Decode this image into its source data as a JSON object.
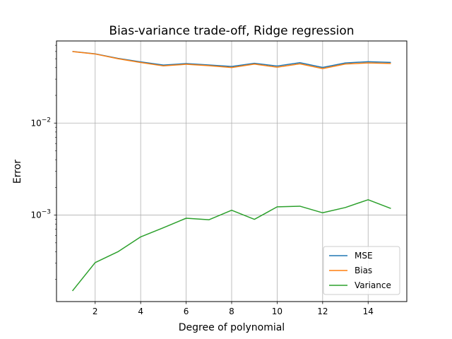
{
  "chart_data": {
    "type": "line",
    "title": "Bias-variance trade-off, Ridge regression",
    "xlabel": "Degree of polynomial",
    "ylabel": "Error",
    "yscale": "log",
    "xlim": [
      0.3,
      15.7
    ],
    "ylim": [
      0.000115,
      0.078
    ],
    "grid": true,
    "legend_position": "lower-right",
    "x": [
      1,
      2,
      3,
      4,
      5,
      6,
      7,
      8,
      9,
      10,
      11,
      12,
      13,
      14,
      15
    ],
    "x_ticks": [
      {
        "value": 2,
        "label": "2"
      },
      {
        "value": 4,
        "label": "4"
      },
      {
        "value": 6,
        "label": "6"
      },
      {
        "value": 8,
        "label": "8"
      },
      {
        "value": 10,
        "label": "10"
      },
      {
        "value": 12,
        "label": "12"
      },
      {
        "value": 14,
        "label": "14"
      }
    ],
    "y_ticks": [
      {
        "value": 0.01,
        "base": "10",
        "exp": "−2"
      },
      {
        "value": 0.001,
        "base": "10",
        "exp": "−3"
      }
    ],
    "series": [
      {
        "name": "MSE",
        "color": "#1f77b4",
        "values": [
          0.06,
          0.0565,
          0.0505,
          0.0462,
          0.0427,
          0.0443,
          0.0428,
          0.0412,
          0.0446,
          0.0417,
          0.0453,
          0.0402,
          0.045,
          0.0464,
          0.0456
        ]
      },
      {
        "name": "Bias",
        "color": "#ff7f0e",
        "values": [
          0.0598,
          0.0563,
          0.05,
          0.0455,
          0.0418,
          0.0435,
          0.042,
          0.0401,
          0.0437,
          0.0405,
          0.044,
          0.0391,
          0.0438,
          0.045,
          0.0444
        ]
      },
      {
        "name": "Variance",
        "color": "#2ca02c",
        "values": [
          0.00015,
          0.000305,
          0.0004,
          0.00058,
          0.00073,
          0.000925,
          0.00089,
          0.00113,
          0.0009,
          0.00123,
          0.00125,
          0.00106,
          0.00121,
          0.00147,
          0.00118
        ]
      }
    ]
  }
}
